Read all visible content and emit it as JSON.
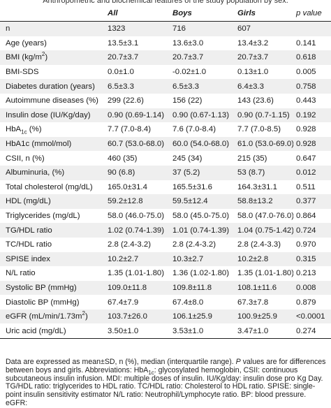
{
  "caption": "Anthropometric and biochemical features of the study population by sex.",
  "columns": [
    "",
    "All",
    "Boys",
    "Girls",
    "p value"
  ],
  "rows": [
    {
      "label": "n",
      "all": "1323",
      "boys": "716",
      "girls": "607",
      "p": ""
    },
    {
      "label": "Age (years)",
      "all": "13.5±3.1",
      "boys": "13.6±3.0",
      "girls": "13.4±3.2",
      "p": "0.141"
    },
    {
      "label": "BMI (kg/m",
      "label_sup": "2",
      "label_after": ")",
      "all": "20.7±3.7",
      "boys": "20.7±3.7",
      "girls": "20.7±3.7",
      "p": "0.618"
    },
    {
      "label": "BMI-SDS",
      "all": "0.0±1.0",
      "boys": "-0.02±1.0",
      "girls": "0.13±1.0",
      "p": "0.005"
    },
    {
      "label": "Diabetes duration (years)",
      "all": "6.5±3.3",
      "boys": "6.5±3.3",
      "girls": "6.4±3.3",
      "p": "0.758"
    },
    {
      "label": "Autoimmune diseases (%)",
      "all": "299 (22.6)",
      "boys": "156 (22)",
      "girls": "143 (23.6)",
      "p": "0.443"
    },
    {
      "label": "Insulin dose (IU/Kg/day)",
      "all": "0.90 (0.69-1.14)",
      "boys": "0.90 (0.67-1.13)",
      "girls": "0.90 (0.7-1.15)",
      "p": "0.192"
    },
    {
      "label": "HbA",
      "label_sub": "1c",
      "label_after": " (%)",
      "all": "7.7 (7.0-8.4)",
      "boys": "7.6 (7.0-8.4)",
      "girls": "7.7 (7.0-8.5)",
      "p": "0.928"
    },
    {
      "label": "HbA1c (mmol/mol)",
      "all": "60.7 (53.0-68.0)",
      "boys": "60.0 (54.0-68.0)",
      "girls": "61.0 (53.0-69.0)",
      "p": "0.928"
    },
    {
      "label": "CSII, n (%)",
      "all": "460 (35)",
      "boys": "245 (34)",
      "girls": "215 (35)",
      "p": "0.647"
    },
    {
      "label": "Albuminuria, (%)",
      "all": "90 (6.8)",
      "boys": "37 (5.2)",
      "girls": "53 (8.7)",
      "p": "0.012"
    },
    {
      "label": "Total cholesterol (mg/dL)",
      "all": "165.0±31.4",
      "boys": "165.5±31.6",
      "girls": "164.3±31.1",
      "p": "0.511"
    },
    {
      "label": "HDL (mg/dL)",
      "all": "59.2±12.8",
      "boys": "59.5±12.4",
      "girls": "58.8±13.2",
      "p": "0.377"
    },
    {
      "label": "Triglycerides (mg/dL)",
      "all": "58.0 (46.0-75.0)",
      "boys": "58.0 (45.0-75.0)",
      "girls": "58.0 (47.0-76.0)",
      "p": "0.864"
    },
    {
      "label": "TG/HDL ratio",
      "all": "1.02 (0.74-1.39)",
      "boys": "1.01 (0.74-1.39)",
      "girls": "1.04 (0.75-1.42)",
      "p": "0.724"
    },
    {
      "label": "TC/HDL ratio",
      "all": "2.8 (2.4-3.2)",
      "boys": "2.8 (2.4-3.2)",
      "girls": "2.8 (2.4-3.3)",
      "p": "0.970"
    },
    {
      "label": "SPISE index",
      "all": "10.2±2.7",
      "boys": "10.3±2.7",
      "girls": "10.2±2.8",
      "p": "0.315"
    },
    {
      "label": "N/L ratio",
      "all": "1.35 (1.01-1.80)",
      "boys": "1.36 (1.02-1.80)",
      "girls": "1.35 (1.01-1.80)",
      "p": "0.213"
    },
    {
      "label": "Systolic BP (mmHg)",
      "all": "109.0±11.8",
      "boys": "109.8±11.8",
      "girls": "108.1±11.6",
      "p": "0.008"
    },
    {
      "label": "Diastolic BP (mmHg)",
      "all": "67.4±7.9",
      "boys": "67.4±8.0",
      "girls": "67.3±7.8",
      "p": "0.879"
    },
    {
      "label": "eGFR (mL/min/1.73m",
      "label_sup": "2",
      "label_after": ")",
      "all": "103.7±26.0",
      "boys": "106.1±25.9",
      "girls": "100.9±25.9",
      "p": "<0.0001"
    },
    {
      "label": "Uric acid (mg/dL)",
      "all": "3.50±1.0",
      "boys": "3.53±1.0",
      "girls": "3.47±1.0",
      "p": "0.274"
    }
  ],
  "footnote": {
    "part1": "Data are expressed as mean±SD, n (%), median (interquartile range). ",
    "p_symbol": "P",
    "part2": " values are for differences between boys and girls. Abbreviations: HbA",
    "sub": "1c",
    "part3": ": glycosylated hemoglobin, CSII: continuous subcutaneous insulin infusion. MDI: multiple doses of insulin. IU/Kg/day: insulin dose pro Kg Day. TG/HDL ratio: triglycerides to HDL ratio. TC/HDL ratio: Cholesterol to HDL ratio. SPISE: single-point insulin sensitivity estimator N/L ratio: Neutrophil/Lymphocyte ratio. BP: blood pressure. eGFR:"
  }
}
